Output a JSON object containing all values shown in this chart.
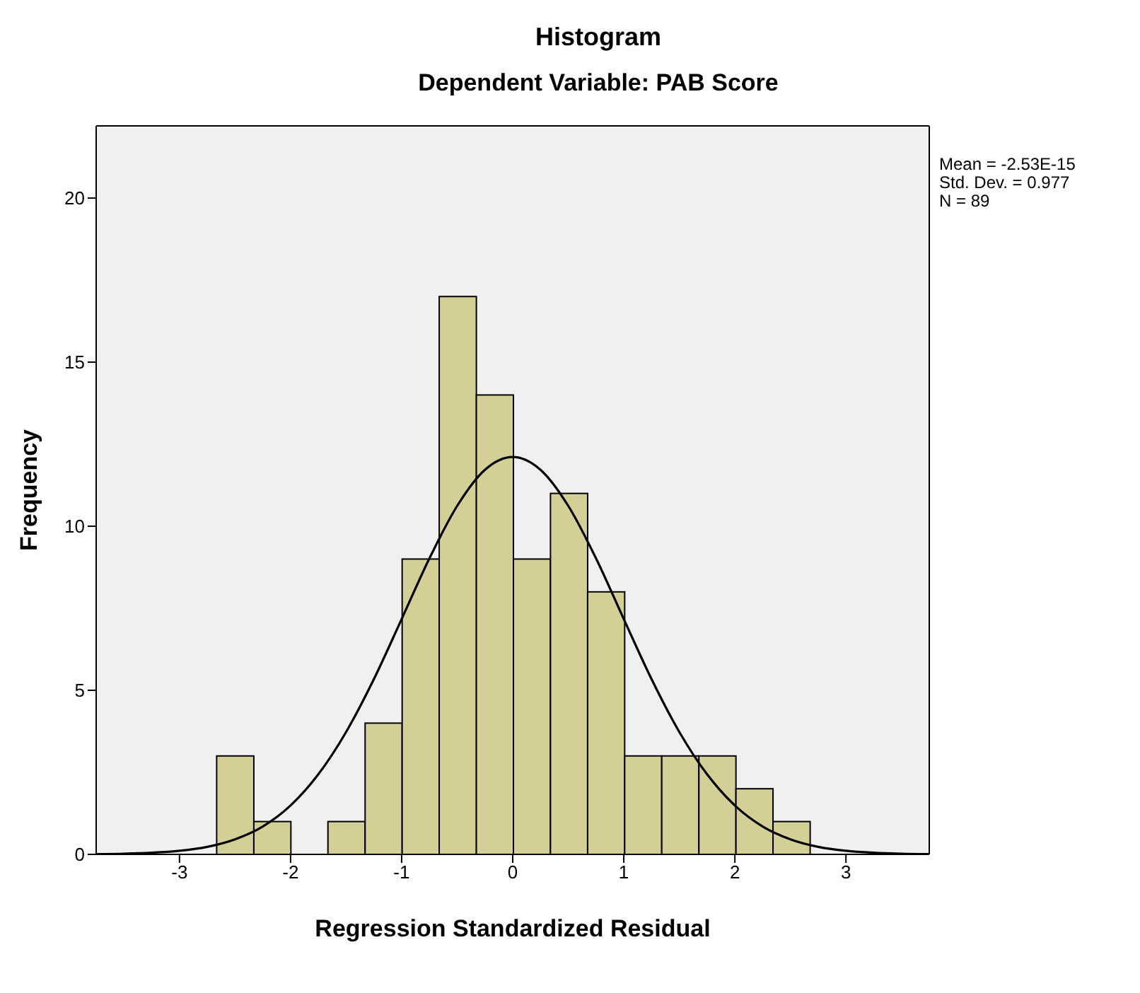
{
  "chart_data": {
    "type": "histogram",
    "title": "Histogram",
    "subtitle": "Dependent Variable: PAB Score",
    "xlabel": "Regression Standardized Residual",
    "ylabel": "Frequency",
    "bins": [
      -2.667,
      -2.333,
      -2,
      -1.667,
      -1.333,
      -1,
      -0.667,
      -0.333,
      0,
      0.333,
      0.667,
      1,
      1.333,
      1.667,
      2,
      2.333,
      2.667
    ],
    "values": [
      3,
      1,
      0,
      1,
      4,
      9,
      17,
      14,
      9,
      11,
      8,
      3,
      3,
      3,
      2,
      1
    ],
    "color": "#d3cf96",
    "series": [
      {
        "type": "line",
        "color": "#000000",
        "marker": "none",
        "x": [
          -3.75,
          -3.5,
          -3.25,
          -3,
          -2.75,
          -2.5,
          -2.25,
          -2,
          -1.75,
          -1.5,
          -1.25,
          -1,
          -0.75,
          -0.5,
          -0.25,
          0,
          0.25,
          0.5,
          0.75,
          1,
          1.25,
          1.5,
          1.75,
          2,
          2.25,
          2.5,
          2.75,
          3,
          3.25,
          3.5,
          3.75
        ],
        "values": [
          0.01,
          0.02,
          0.05,
          0.11,
          0.23,
          0.46,
          0.85,
          1.49,
          2.44,
          3.73,
          5.34,
          7.17,
          9.02,
          10.62,
          11.72,
          12.11,
          11.72,
          10.62,
          9.02,
          7.17,
          5.34,
          3.73,
          2.44,
          1.49,
          0.85,
          0.46,
          0.23,
          0.11,
          0.05,
          0.02,
          0.01
        ]
      }
    ],
    "xlim": [
      -3.75,
      3.75
    ],
    "xticks": [
      -3,
      -2,
      -1,
      0,
      1,
      2,
      3
    ],
    "ylim": [
      0,
      22.2
    ],
    "yticks": [
      0,
      5,
      10,
      15,
      20
    ],
    "annotations": [
      "Mean = -2.53E-15",
      "Std. Dev. = 0.977",
      "N = 89"
    ]
  }
}
